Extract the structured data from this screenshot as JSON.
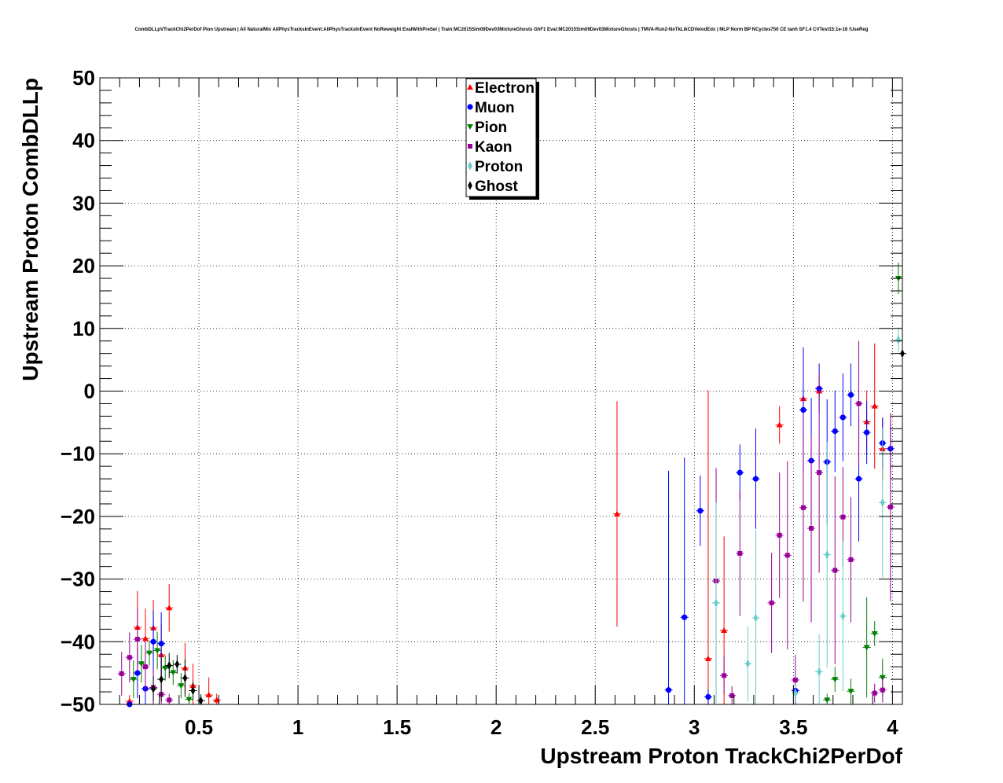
{
  "chart_data": {
    "type": "scatter",
    "title": "CombDLLpVTrackChi2PerDof Pion Upstream | All NaturalMix AllPhysTracksInEvent:AllPhysTracksInEvent NoReweight EvalWithPreSel | Train:MC2015Sim09Dev03MixtureGhosts GhF1 Eval:MC2015Sim09Dev03MixtureGhosts | TMVA-Run2-NoTkLikCDVelodEdx | MLP Norm BP NCycles750 CE tanh SF1.4 CVTest15:1e-16 !UseReg",
    "xlabel": "Upstream Proton TrackChi2PerDof",
    "ylabel": "Upstream Proton CombDLLp",
    "xlim": [
      0.0,
      4.05
    ],
    "ylim": [
      -50,
      50
    ],
    "xticks": [
      0.5,
      1,
      1.5,
      2,
      2.5,
      3,
      3.5,
      4
    ],
    "xtick_labels": [
      "0.5",
      "1",
      "1.5",
      "2",
      "2.5",
      "3",
      "3.5",
      "4"
    ],
    "yticks": [
      -50,
      -40,
      -30,
      -20,
      -10,
      0,
      10,
      20,
      30,
      40,
      50
    ],
    "ytick_labels": [
      "−50",
      "−40",
      "−30",
      "−20",
      "−10",
      "0",
      "10",
      "20",
      "30",
      "40",
      "50"
    ],
    "grid": true,
    "legend_position": "top-center",
    "series": [
      {
        "name": "Electron",
        "color": "#ff0000",
        "marker": "triangle-up",
        "points": [
          [
            0.15,
            -49.5,
            1.0
          ],
          [
            0.19,
            -37.7,
            5.8
          ],
          [
            0.23,
            -39.5,
            4.8
          ],
          [
            0.27,
            -37.8,
            4.5
          ],
          [
            0.31,
            -42.1,
            5.0
          ],
          [
            0.35,
            -34.6,
            3.8
          ],
          [
            0.43,
            -44.2,
            4.0
          ],
          [
            0.47,
            -47.0,
            3.5
          ],
          [
            0.55,
            -48.5,
            2.8
          ],
          [
            0.59,
            -49.3,
            1.0
          ],
          [
            2.61,
            -19.6,
            18.0
          ],
          [
            3.07,
            -42.7,
            42.8
          ],
          [
            3.15,
            -38.2,
            15.0
          ],
          [
            3.43,
            -5.4,
            3.0
          ],
          [
            3.55,
            -1.2,
            1.5
          ],
          [
            3.63,
            0.0,
            1.5
          ],
          [
            3.87,
            -4.9,
            5.0
          ],
          [
            3.91,
            -2.4,
            10.0
          ],
          [
            3.95,
            -9.2,
            5.0
          ]
        ]
      },
      {
        "name": "Muon",
        "color": "#0000ff",
        "marker": "circle",
        "points": [
          [
            0.15,
            -50.0,
            0.5
          ],
          [
            0.19,
            -45.0,
            4.0
          ],
          [
            0.23,
            -47.5,
            2.5
          ],
          [
            0.27,
            -40.0,
            5.0
          ],
          [
            0.31,
            -40.3,
            5.0
          ],
          [
            2.87,
            -47.7,
            35.0
          ],
          [
            2.95,
            -36.1,
            25.5
          ],
          [
            3.03,
            -19.1,
            5.6
          ],
          [
            3.07,
            -48.8,
            1.2
          ],
          [
            3.23,
            -13.0,
            4.5
          ],
          [
            3.31,
            -14.0,
            8.0
          ],
          [
            3.51,
            -47.8,
            2.0
          ],
          [
            3.55,
            -3.0,
            10.0
          ],
          [
            3.59,
            -11.1,
            10.0
          ],
          [
            3.63,
            0.4,
            4.0
          ],
          [
            3.67,
            -11.3,
            10.0
          ],
          [
            3.71,
            -6.4,
            6.5
          ],
          [
            3.75,
            -4.2,
            7.0
          ],
          [
            3.79,
            -0.6,
            5.0
          ],
          [
            3.83,
            -14.0,
            10.0
          ],
          [
            3.87,
            -6.6,
            5.0
          ],
          [
            3.95,
            -8.3,
            4.0
          ],
          [
            3.99,
            -9.2,
            4.0
          ]
        ]
      },
      {
        "name": "Pion",
        "color": "#008000",
        "marker": "triangle-down",
        "points": [
          [
            0.17,
            -46.0,
            3.0
          ],
          [
            0.21,
            -43.5,
            3.0
          ],
          [
            0.25,
            -41.8,
            2.0
          ],
          [
            0.29,
            -41.4,
            3.0
          ],
          [
            0.33,
            -44.2,
            2.0
          ],
          [
            0.37,
            -44.9,
            2.0
          ],
          [
            0.41,
            -47.0,
            2.0
          ],
          [
            0.45,
            -49.2,
            1.0
          ],
          [
            3.67,
            -49.3,
            1.0
          ],
          [
            3.71,
            -46.0,
            2.0
          ],
          [
            3.79,
            -47.9,
            2.0
          ],
          [
            3.87,
            -40.9,
            8.0
          ],
          [
            3.91,
            -38.7,
            2.0
          ],
          [
            3.95,
            -45.7,
            3.0
          ],
          [
            4.03,
            18.0,
            2.5
          ]
        ]
      },
      {
        "name": "Kaon",
        "color": "#990099",
        "marker": "square",
        "points": [
          [
            0.11,
            -45.1,
            3.5
          ],
          [
            0.15,
            -42.5,
            4.0
          ],
          [
            0.19,
            -39.6,
            5.0
          ],
          [
            0.23,
            -44.0,
            4.0
          ],
          [
            0.27,
            -47.3,
            3.0
          ],
          [
            0.31,
            -48.4,
            1.5
          ],
          [
            0.35,
            -49.3,
            1.0
          ],
          [
            3.11,
            -30.3,
            18.0
          ],
          [
            3.15,
            -45.4,
            3.0
          ],
          [
            3.19,
            -48.6,
            1.5
          ],
          [
            3.23,
            -25.9,
            10.0
          ],
          [
            3.39,
            -33.8,
            8.0
          ],
          [
            3.43,
            -23.0,
            10.0
          ],
          [
            3.47,
            -26.2,
            15.0
          ],
          [
            3.51,
            -46.1,
            4.0
          ],
          [
            3.55,
            -18.6,
            15.0
          ],
          [
            3.59,
            -21.9,
            15.0
          ],
          [
            3.63,
            -13.0,
            16.0
          ],
          [
            3.71,
            -28.6,
            15.0
          ],
          [
            3.75,
            -20.1,
            8.0
          ],
          [
            3.79,
            -26.9,
            10.0
          ],
          [
            3.83,
            -2.0,
            10.0
          ],
          [
            3.91,
            -48.2,
            1.5
          ],
          [
            3.95,
            -47.7,
            2.0
          ],
          [
            3.99,
            -18.5,
            15.0
          ]
        ]
      },
      {
        "name": "Proton",
        "color": "#66cccc",
        "marker": "cross",
        "points": [
          [
            3.11,
            -33.8,
            16.0
          ],
          [
            3.27,
            -43.5,
            6.0
          ],
          [
            3.31,
            -36.2,
            14.0
          ],
          [
            3.51,
            -48.2,
            1.5
          ],
          [
            3.63,
            -44.8,
            6.0
          ],
          [
            3.67,
            -26.1,
            18.0
          ],
          [
            3.75,
            -35.9,
            12.0
          ],
          [
            3.95,
            -17.8,
            12.0
          ],
          [
            4.03,
            8.2,
            2.0
          ]
        ]
      },
      {
        "name": "Ghost",
        "color": "#000000",
        "marker": "cross",
        "points": [
          [
            0.27,
            -47.5,
            2.0
          ],
          [
            0.31,
            -46.0,
            3.5
          ],
          [
            0.35,
            -43.8,
            2.0
          ],
          [
            0.39,
            -43.6,
            1.5
          ],
          [
            0.43,
            -45.8,
            3.0
          ],
          [
            0.47,
            -47.8,
            1.5
          ],
          [
            0.51,
            -49.4,
            1.0
          ],
          [
            4.05,
            6.0,
            12.0
          ]
        ]
      }
    ]
  }
}
